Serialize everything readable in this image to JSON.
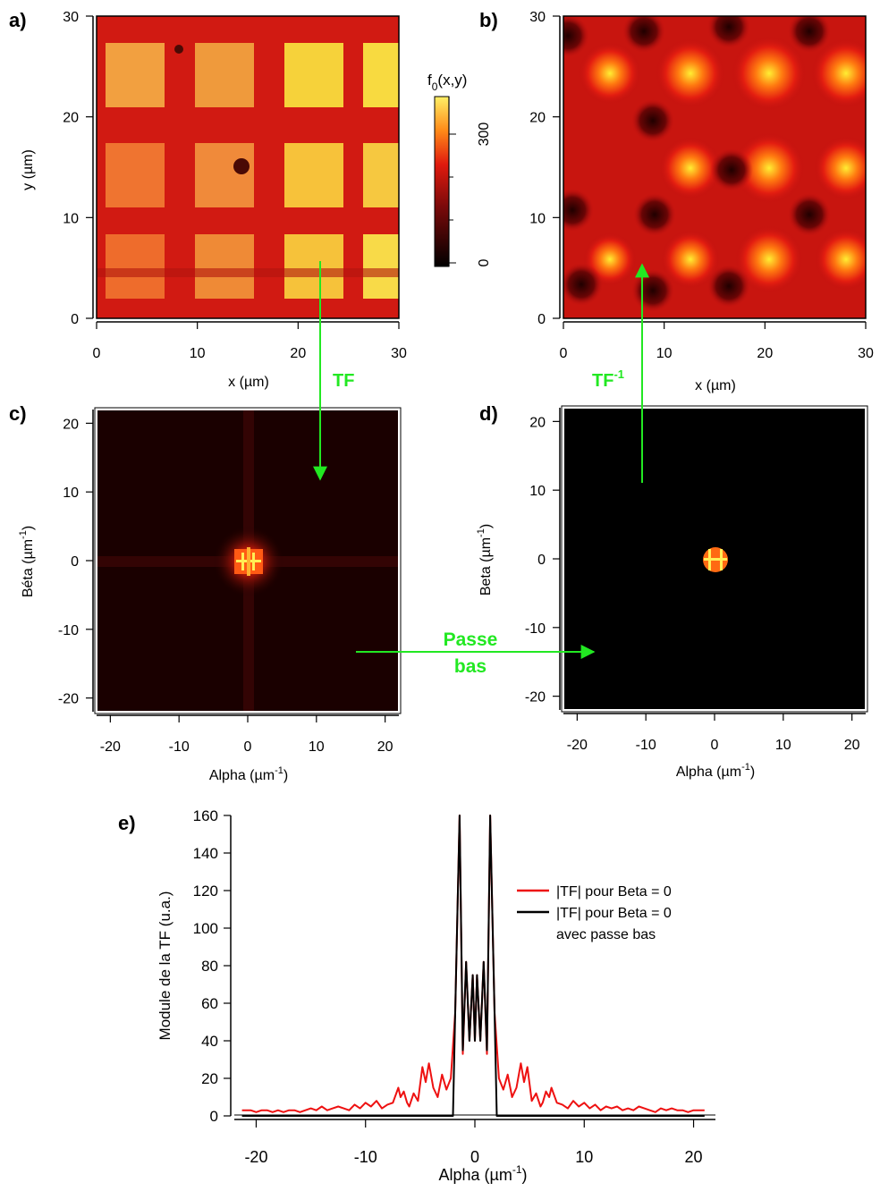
{
  "panels": {
    "a": {
      "label": "a)",
      "xlabel": "x (µm)",
      "ylabel": "y (µm)",
      "xticks": [
        "0",
        "10",
        "20",
        "30"
      ],
      "yticks": [
        "0",
        "10",
        "20",
        "30"
      ],
      "xlim": [
        0,
        30
      ],
      "ylim": [
        0,
        30
      ],
      "image": "square grid of bright pads on red background"
    },
    "b": {
      "label": "b)",
      "xlabel": "x (µm)",
      "xticks": [
        "0",
        "10",
        "20",
        "30"
      ],
      "yticks": [
        "0",
        "10",
        "20",
        "30"
      ],
      "xlim": [
        0,
        30
      ],
      "ylim": [
        0,
        30
      ],
      "image": "blurred grid of bright spots after low-pass filtering"
    },
    "c": {
      "label": "c)",
      "xlabel_main": "Alpha (µm",
      "xlabel_sup": "-1",
      "xlabel_end": ")",
      "ylabel_main": "Béta (µm",
      "ylabel_sup": "-1",
      "ylabel_end": ")",
      "xticks": [
        "-20",
        "-10",
        "0",
        "10",
        "20"
      ],
      "yticks": [
        "-20",
        "-10",
        "0",
        "10",
        "20"
      ],
      "xlim": [
        -22,
        22
      ],
      "ylim": [
        -22,
        22
      ]
    },
    "d": {
      "label": "d)",
      "xlabel_main": "Alpha (µm",
      "xlabel_sup": "-1",
      "xlabel_end": ")",
      "ylabel_main": "Beta (µm",
      "ylabel_sup": "-1",
      "ylabel_end": ")",
      "xticks": [
        "-20",
        "-10",
        "0",
        "10",
        "20"
      ],
      "yticks": [
        "-20",
        "-10",
        "0",
        "10",
        "20"
      ],
      "xlim": [
        -22,
        22
      ],
      "ylim": [
        -22,
        22
      ]
    }
  },
  "colorbar": {
    "title_main": "f",
    "title_sub": "0",
    "title_end": "(x,y)",
    "ticks": [
      "0",
      "300"
    ],
    "range": [
      0,
      400
    ]
  },
  "arrows": {
    "tf": "TF",
    "tf_inv_main": "TF",
    "tf_inv_sup": "-1",
    "lowpass_line1": "Passe",
    "lowpass_line2": "bas",
    "color": "#22e822"
  },
  "chart_data": {
    "type": "line",
    "label": "e)",
    "title": "",
    "xlabel_main": "Alpha (µm",
    "xlabel_sup": "-1",
    "xlabel_end": ")",
    "ylabel": "Module de la TF (u.a.)",
    "xlim": [
      -22,
      22
    ],
    "ylim": [
      0,
      160
    ],
    "xticks": [
      "-20",
      "-10",
      "0",
      "10",
      "20"
    ],
    "yticks": [
      "0",
      "20",
      "40",
      "60",
      "80",
      "100",
      "120",
      "140",
      "160"
    ],
    "legend_position": "right",
    "series": [
      {
        "name": "|TF| pour Beta = 0",
        "color": "#ee1111",
        "x": [
          -21.3,
          -20.5,
          -20,
          -19.5,
          -19,
          -18.5,
          -18,
          -17.5,
          -17,
          -16.5,
          -16,
          -15.5,
          -15,
          -14.5,
          -14,
          -13.5,
          -13,
          -12.5,
          -12,
          -11.5,
          -11,
          -10.5,
          -10,
          -9.5,
          -9,
          -8.5,
          -8,
          -7.5,
          -7,
          -6.8,
          -6.5,
          -6.2,
          -6,
          -5.6,
          -5.2,
          -4.8,
          -4.5,
          -4.2,
          -3.8,
          -3.4,
          -3,
          -2.6,
          -2.2,
          -1.8,
          -1.4,
          -1.1,
          -0.8,
          -0.5,
          -0.2,
          0,
          0.2,
          0.5,
          0.8,
          1.1,
          1.4,
          1.8,
          2.2,
          2.6,
          3,
          3.4,
          3.8,
          4.2,
          4.5,
          4.8,
          5.2,
          5.6,
          6,
          6.2,
          6.5,
          6.8,
          7,
          7.5,
          8,
          8.5,
          9,
          9.5,
          10,
          10.5,
          11,
          11.5,
          12,
          12.5,
          13,
          13.5,
          14,
          14.5,
          15,
          15.5,
          16,
          16.5,
          17,
          17.5,
          18,
          18.5,
          19,
          19.5,
          20,
          20.5,
          21
        ],
        "y": [
          3,
          3,
          2,
          3,
          3,
          2,
          3,
          2,
          3,
          3,
          2,
          3,
          4,
          3,
          5,
          3,
          4,
          5,
          4,
          3,
          6,
          4,
          7,
          5,
          8,
          4,
          6,
          7,
          15,
          10,
          13,
          7,
          5,
          12,
          8,
          26,
          18,
          28,
          15,
          10,
          22,
          14,
          20,
          55,
          160,
          33,
          82,
          40,
          75,
          40,
          75,
          40,
          82,
          33,
          160,
          55,
          20,
          14,
          22,
          10,
          15,
          28,
          18,
          26,
          8,
          12,
          5,
          7,
          13,
          10,
          15,
          7,
          6,
          4,
          8,
          5,
          7,
          4,
          6,
          3,
          5,
          4,
          5,
          3,
          4,
          3,
          5,
          4,
          3,
          2,
          4,
          3,
          4,
          3,
          3,
          2,
          3,
          3,
          3
        ],
        "sample_note": "approximate readings"
      },
      {
        "name": "|TF| pour Beta = 0",
        "name_line2": "avec passe bas",
        "color": "#000000",
        "x": [
          -21.3,
          -2.0,
          -1.8,
          -1.4,
          -1.1,
          -0.8,
          -0.5,
          -0.2,
          0,
          0.2,
          0.5,
          0.8,
          1.1,
          1.4,
          1.8,
          2.0,
          21
        ],
        "y": [
          0,
          0,
          55,
          160,
          35,
          82,
          40,
          75,
          40,
          75,
          40,
          82,
          35,
          160,
          55,
          0,
          0
        ]
      }
    ]
  }
}
